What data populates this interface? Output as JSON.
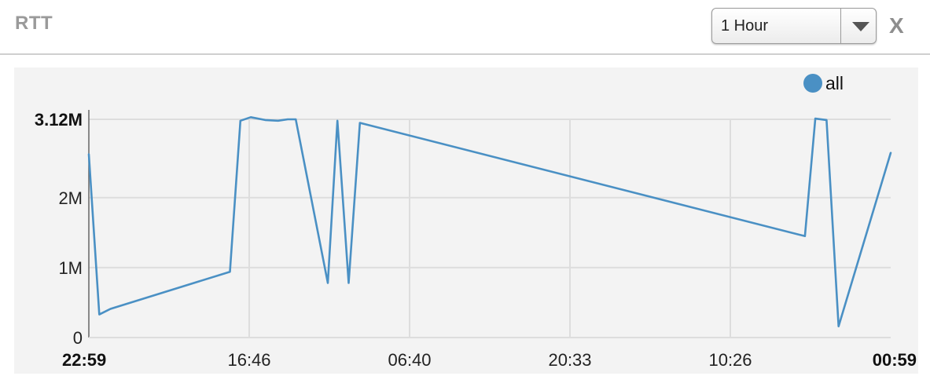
{
  "header": {
    "title": "RTT",
    "range_selected": "1 Hour",
    "close_label": "X"
  },
  "chart_data": {
    "type": "line",
    "title": "",
    "xlabel": "",
    "ylabel": "",
    "x_tick_labels": [
      "22:59",
      "16:46",
      "06:40",
      "20:33",
      "10:26",
      "00:59"
    ],
    "x_tick_positions": [
      0,
      0.2,
      0.4,
      0.6,
      0.8,
      1.0
    ],
    "y_tick_labels": [
      "0",
      "1M",
      "2M",
      "3.12M"
    ],
    "y_tick_values": [
      0,
      1000000,
      2000000,
      3120000
    ],
    "ylim": [
      0,
      3120000
    ],
    "xlim": [
      0,
      1
    ],
    "grid": true,
    "legend_position": "top-right",
    "color": "#4a90c4",
    "series": [
      {
        "name": "all",
        "points": [
          [
            0.0,
            2620000
          ],
          [
            0.013,
            330000
          ],
          [
            0.027,
            410000
          ],
          [
            0.176,
            940000
          ],
          [
            0.189,
            3100000
          ],
          [
            0.202,
            3150000
          ],
          [
            0.22,
            3110000
          ],
          [
            0.236,
            3100000
          ],
          [
            0.248,
            3120000
          ],
          [
            0.258,
            3120000
          ],
          [
            0.298,
            780000
          ],
          [
            0.31,
            3100000
          ],
          [
            0.324,
            780000
          ],
          [
            0.338,
            3070000
          ],
          [
            0.893,
            1450000
          ],
          [
            0.906,
            3130000
          ],
          [
            0.92,
            3110000
          ],
          [
            0.935,
            160000
          ],
          [
            1.0,
            2640000
          ]
        ]
      }
    ]
  }
}
